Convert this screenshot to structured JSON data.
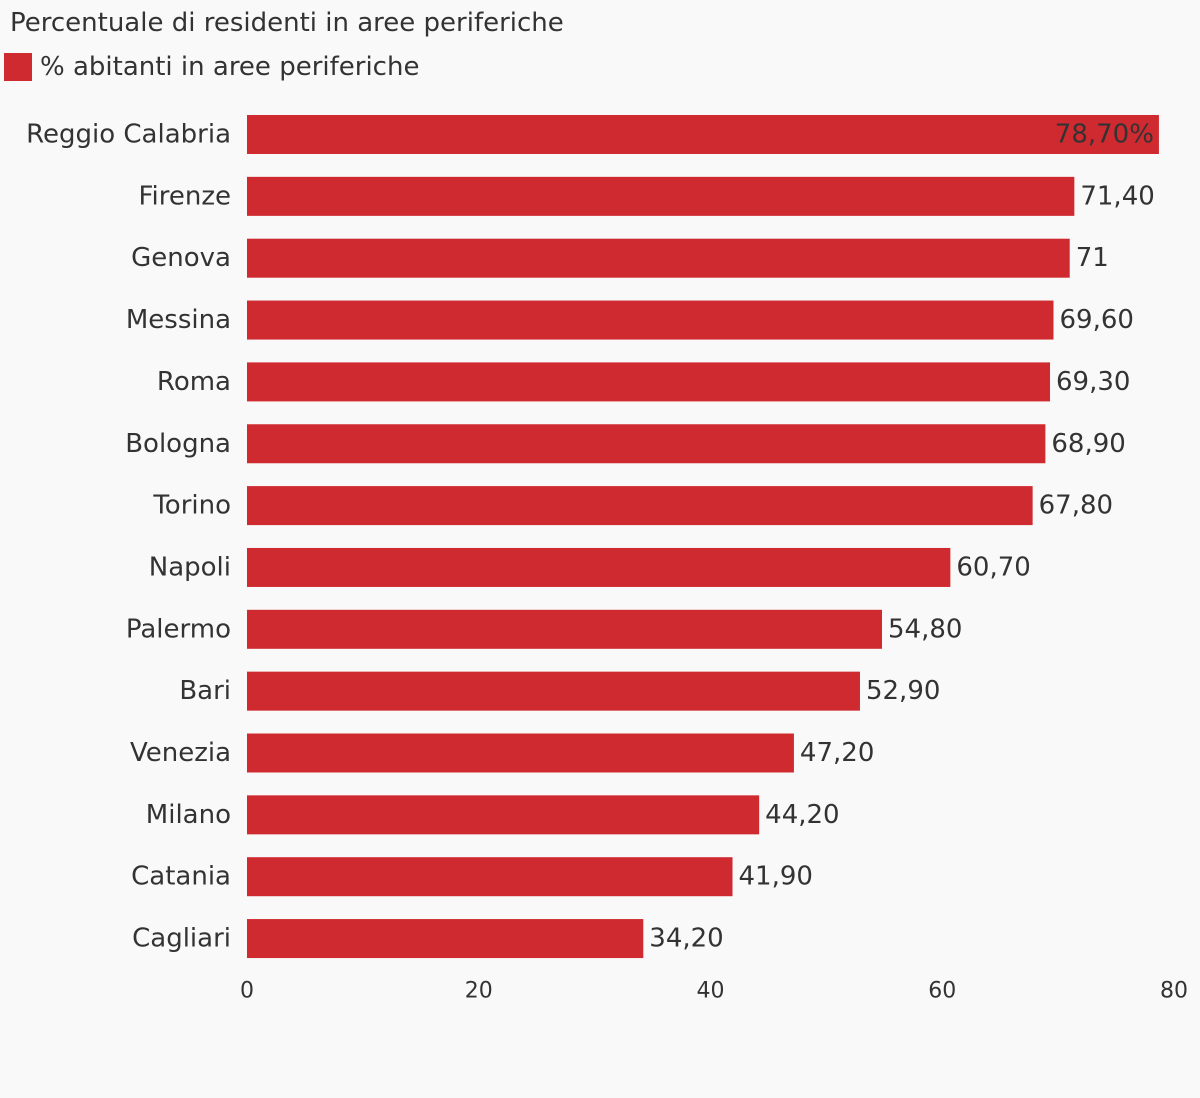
{
  "chart_data": {
    "type": "bar",
    "orientation": "horizontal",
    "title": "Percentuale di residenti in aree periferiche",
    "categories": [
      "Reggio Calabria",
      "Firenze",
      "Genova",
      "Messina",
      "Roma",
      "Bologna",
      "Torino",
      "Napoli",
      "Palermo",
      "Bari",
      "Venezia",
      "Milano",
      "Catania",
      "Cagliari"
    ],
    "series": [
      {
        "name": "% abitanti in aree periferiche",
        "color": "#cf2a30",
        "values": [
          78.7,
          71.4,
          71,
          69.6,
          69.3,
          68.9,
          67.8,
          60.7,
          54.8,
          52.9,
          47.2,
          44.2,
          41.9,
          34.2
        ],
        "labels": [
          "78,70%",
          "71,40",
          "71",
          "69,60",
          "69,30",
          "68,90",
          "67,80",
          "60,70",
          "54,80",
          "52,90",
          "47,20",
          "44,20",
          "41,90",
          "34,20"
        ]
      }
    ],
    "xlim": [
      0,
      80
    ],
    "x_ticks": [
      "0",
      "20",
      "40",
      "60",
      "80"
    ],
    "grid": false,
    "legend_position": "top-left"
  },
  "colors": {
    "bar": "#cf2a30",
    "text": "#333333",
    "background": "#f9f9f9"
  }
}
